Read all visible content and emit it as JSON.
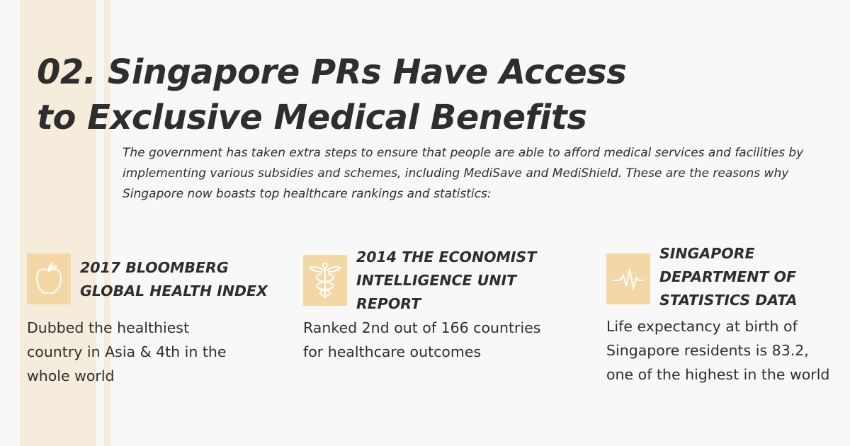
{
  "title": {
    "line1": "02. Singapore PRs Have Access",
    "line2": "to Exclusive Medical Benefits"
  },
  "intro": "The government has taken extra steps to ensure that people are able to afford medical services and facilities by implementing various subsidies and schemes, including MediSave and MediShield. These are the reasons why Singapore now boasts top healthcare rankings and statistics:",
  "colors": {
    "background": "#f8f8f8",
    "stripe": "#f5ecdc",
    "icon_box": "#f3d8a6",
    "icon_stroke": "#ffffff",
    "text": "#2e2e2e"
  },
  "cards": [
    {
      "icon": "apple-icon",
      "heading": [
        "2017 BLOOMBERG",
        "GLOBAL HEALTH INDEX"
      ],
      "desc": [
        "Dubbed the healthiest",
        "country in Asia & 4th in the",
        "whole world"
      ]
    },
    {
      "icon": "caduceus-icon",
      "heading": [
        "2014 THE ECONOMIST",
        "INTELLIGENCE UNIT",
        "REPORT"
      ],
      "desc": [
        "Ranked 2nd out of 166 countries",
        "for healthcare outcomes"
      ]
    },
    {
      "icon": "heartbeat-icon",
      "heading": [
        "SINGAPORE",
        "DEPARTMENT OF",
        "STATISTICS DATA"
      ],
      "desc": [
        "Life expectancy at birth of",
        "Singapore residents is 83.2,",
        "one of the highest in the world"
      ]
    }
  ]
}
